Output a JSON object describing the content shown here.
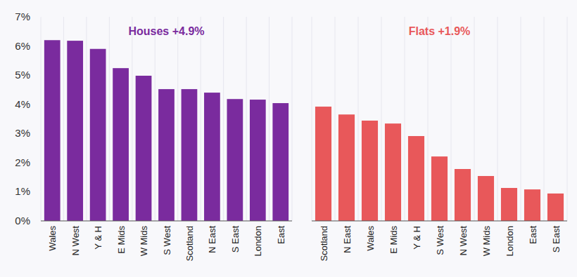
{
  "chart_data": [
    {
      "type": "bar",
      "title": "Houses +4.9%",
      "categories": [
        "Wales",
        "N West",
        "Y & H",
        "E Mids",
        "W Mids",
        "S West",
        "Scotland",
        "N East",
        "S East",
        "London",
        "East"
      ],
      "values": [
        6.2,
        6.18,
        5.9,
        5.24,
        4.98,
        4.52,
        4.52,
        4.4,
        4.18,
        4.16,
        4.04
      ],
      "color": "#7a2b9e",
      "ylim": [
        0,
        7
      ],
      "yticks": [
        {
          "value": 0,
          "label": "0%"
        },
        {
          "value": 1,
          "label": "1%"
        },
        {
          "value": 2,
          "label": "2%"
        },
        {
          "value": 3,
          "label": "3%"
        },
        {
          "value": 4,
          "label": "4%"
        },
        {
          "value": 5,
          "label": "5%"
        },
        {
          "value": 6,
          "label": "6%"
        },
        {
          "value": 7,
          "label": "7%"
        }
      ],
      "grid": true
    },
    {
      "type": "bar",
      "title": "Flats +1.9%",
      "categories": [
        "Scotland",
        "N East",
        "Wales",
        "E Mids",
        "Y & H",
        "S West",
        "N West",
        "W Mids",
        "London",
        "East",
        "S East"
      ],
      "values": [
        3.92,
        3.65,
        3.44,
        3.34,
        2.91,
        2.21,
        1.78,
        1.54,
        1.13,
        1.08,
        0.94
      ],
      "color": "#e8585a",
      "ylim": [
        0,
        7
      ],
      "tick_labels": "x",
      "grid": true
    }
  ]
}
